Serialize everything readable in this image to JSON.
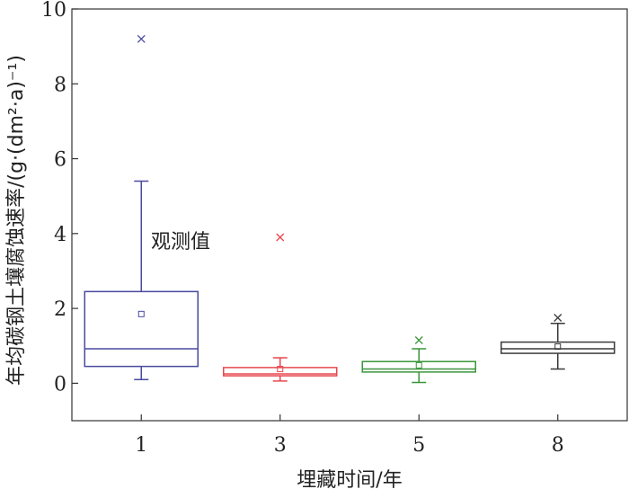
{
  "chart_data": {
    "type": "box",
    "ylabel": "年均碳钢土壤腐蚀速率/(g·(dm²·a)⁻¹)",
    "xlabel": "埋藏时间/年",
    "ylim": [
      -1,
      10
    ],
    "yticks": [
      0,
      2,
      4,
      6,
      8,
      10
    ],
    "categories": [
      "1",
      "3",
      "5",
      "8"
    ],
    "annotation": "观测值",
    "grid": false,
    "boxes": [
      {
        "category": "1",
        "color": "#4a4aa0",
        "q1": 0.45,
        "median": 0.92,
        "q3": 2.45,
        "whisker_low": 0.1,
        "whisker_high": 5.4,
        "mean": 1.85,
        "outliers": [
          9.2
        ]
      },
      {
        "category": "3",
        "color": "#e8474f",
        "q1": 0.2,
        "median": 0.25,
        "q3": 0.42,
        "whisker_low": 0.06,
        "whisker_high": 0.68,
        "mean": 0.38,
        "outliers": [
          3.9
        ]
      },
      {
        "category": "5",
        "color": "#3a963a",
        "q1": 0.3,
        "median": 0.38,
        "q3": 0.58,
        "whisker_low": 0.02,
        "whisker_high": 0.92,
        "mean": 0.48,
        "outliers": [
          1.15
        ]
      },
      {
        "category": "8",
        "color": "#3a3a3a",
        "q1": 0.8,
        "median": 0.92,
        "q3": 1.1,
        "whisker_low": 0.38,
        "whisker_high": 1.6,
        "mean": 0.98,
        "outliers": [
          1.75
        ]
      }
    ]
  }
}
